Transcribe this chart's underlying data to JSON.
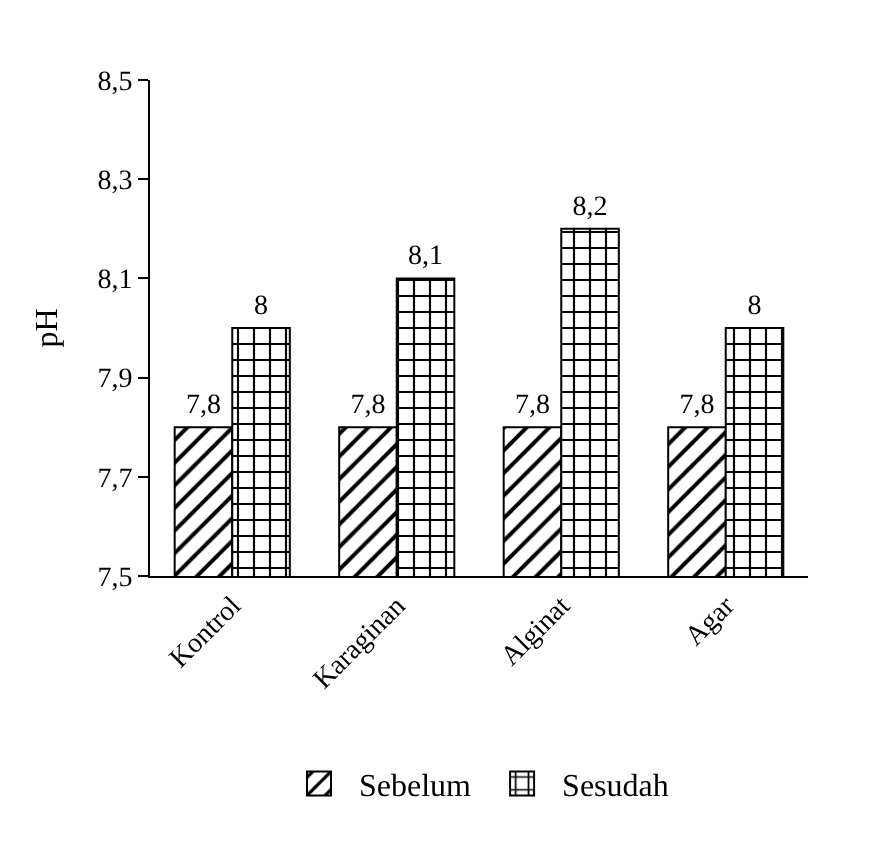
{
  "chart_data": {
    "type": "bar",
    "ylabel": "pH",
    "categories": [
      "Kontrol",
      "Karaginan",
      "Alginat",
      "Agar"
    ],
    "series": [
      {
        "name": "Sebelum",
        "color": "#000000",
        "values": [
          7.8,
          7.8,
          7.8,
          7.8
        ],
        "value_labels": [
          "7,8",
          "7,8",
          "7,8",
          "7,8"
        ]
      },
      {
        "name": "Sesudah",
        "color": "#000000",
        "values": [
          8,
          8.1,
          8.2,
          8
        ],
        "value_labels": [
          "8",
          "8,1",
          "8,2",
          "8"
        ]
      }
    ],
    "ylim": [
      7.5,
      8.5
    ],
    "yticks": [
      {
        "value": 7.5,
        "label": "7,5"
      },
      {
        "value": 7.7,
        "label": "7,7"
      },
      {
        "value": 7.9,
        "label": "7,9"
      },
      {
        "value": 8.1,
        "label": "8,1"
      },
      {
        "value": 8.3,
        "label": "8,3"
      },
      {
        "value": 8.5,
        "label": "8,5"
      }
    ],
    "legend": "bottom"
  }
}
